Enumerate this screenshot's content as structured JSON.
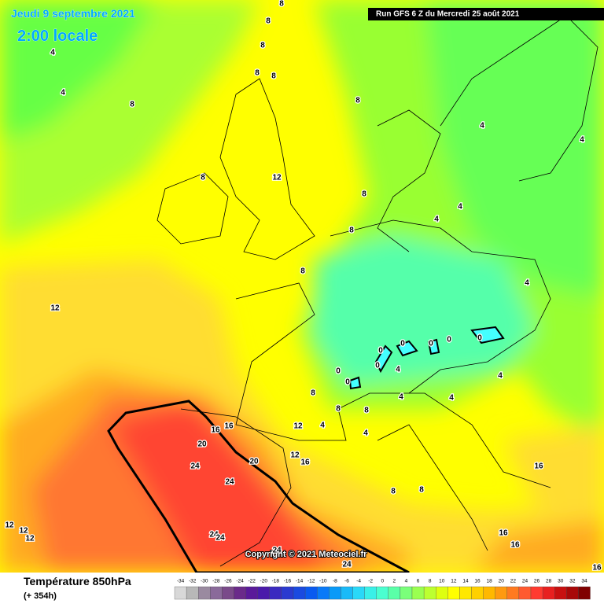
{
  "header": {
    "date": "Jeudi 9 septembre 2021",
    "time": "2:00 locale",
    "run": "Run GFS 6 Z du Mercredi 25 août 2021"
  },
  "copyright": "Copyright © 2021 Meteociel.fr",
  "footer": {
    "title": "Température 850hPa",
    "subtitle": "(+ 354h)"
  },
  "scale": {
    "labels": [
      "-34",
      "-32",
      "-30",
      "-28",
      "-26",
      "-24",
      "-22",
      "-20",
      "-18",
      "-16",
      "-14",
      "-12",
      "-10",
      "-8",
      "-6",
      "-4",
      "-2",
      "0",
      "2",
      "4",
      "6",
      "8",
      "10",
      "12",
      "14",
      "16",
      "18",
      "20",
      "22",
      "24",
      "26",
      "28",
      "30",
      "32",
      "34"
    ],
    "colors": [
      "#d8d8d8",
      "#b8b8b8",
      "#9a8aa0",
      "#8a6a9a",
      "#7a4a8a",
      "#6a2a8a",
      "#5a1a9a",
      "#4a1aaa",
      "#3a2ac0",
      "#2a3ad0",
      "#1a4ae0",
      "#0a5af0",
      "#0a7af8",
      "#0a9af8",
      "#1abaf8",
      "#2ad8f8",
      "#3af0e8",
      "#4affd0",
      "#5affa8",
      "#7aff7a",
      "#9aff50",
      "#bcff30",
      "#deff10",
      "#ffff00",
      "#ffe800",
      "#ffd000",
      "#ffb800",
      "#ff9a10",
      "#ff7a20",
      "#ff5a30",
      "#ff3a30",
      "#e82020",
      "#c81010",
      "#a80808",
      "#800000"
    ]
  },
  "contour_labels": [
    "4",
    "4",
    "8",
    "8",
    "8",
    "8",
    "8",
    "8",
    "8",
    "8",
    "12",
    "8",
    "8",
    "8",
    "12",
    "4",
    "4",
    "4",
    "4",
    "4",
    "0",
    "0",
    "0",
    "0",
    "0",
    "0",
    "0",
    "0",
    "4",
    "4",
    "4",
    "8",
    "8",
    "8",
    "4",
    "4",
    "4",
    "12",
    "16",
    "16",
    "20",
    "20",
    "12",
    "16",
    "24",
    "24",
    "8",
    "8",
    "16",
    "16",
    "16",
    "16",
    "12",
    "12",
    "12",
    "24",
    "24",
    "24",
    "24"
  ]
}
